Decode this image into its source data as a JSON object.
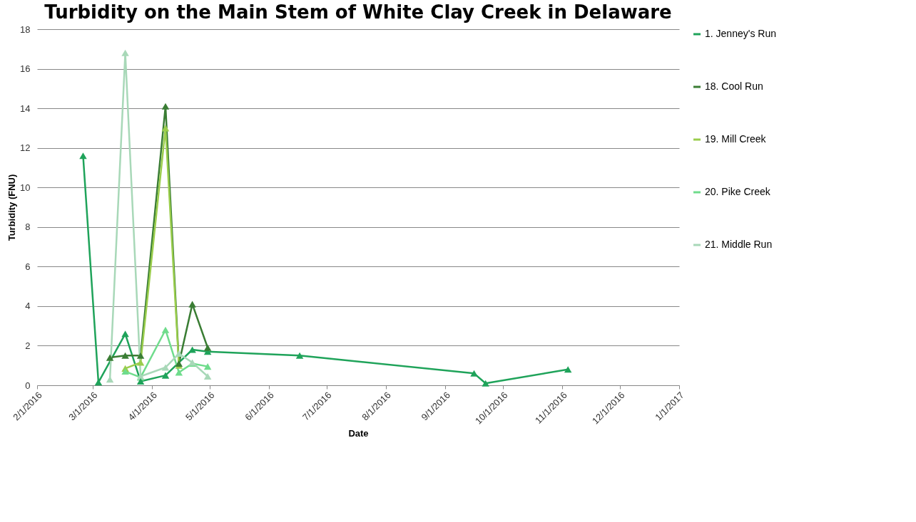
{
  "chart_data": {
    "type": "line",
    "title": "Turbidity on the Main Stem of White Clay Creek in Delaware",
    "xlabel": "Date",
    "ylabel": "Turbidity (FNU)",
    "xlim": [
      "2016-02-01",
      "2017-01-01"
    ],
    "xticks": [
      {
        "value": "2016-02-01",
        "label": "2/1/2016"
      },
      {
        "value": "2016-03-01",
        "label": "3/1/2016"
      },
      {
        "value": "2016-04-01",
        "label": "4/1/2016"
      },
      {
        "value": "2016-05-01",
        "label": "5/1/2016"
      },
      {
        "value": "2016-06-01",
        "label": "6/1/2016"
      },
      {
        "value": "2016-07-01",
        "label": "7/1/2016"
      },
      {
        "value": "2016-08-01",
        "label": "8/1/2016"
      },
      {
        "value": "2016-09-01",
        "label": "9/1/2016"
      },
      {
        "value": "2016-10-01",
        "label": "10/1/2016"
      },
      {
        "value": "2016-11-01",
        "label": "11/1/2016"
      },
      {
        "value": "2016-12-01",
        "label": "12/1/2016"
      },
      {
        "value": "2017-01-01",
        "label": "1/1/2017"
      }
    ],
    "ylim": [
      0,
      18
    ],
    "yticks": [
      0,
      2,
      4,
      6,
      8,
      10,
      12,
      14,
      16,
      18
    ],
    "grid": "y",
    "legend": "right",
    "marker": "triangle",
    "series": [
      {
        "name": "1. Jenney's Run",
        "color": "#1fa35a",
        "x": [
          "2016-02-25",
          "2016-03-04",
          "2016-03-18",
          "2016-03-26",
          "2016-04-08",
          "2016-04-22",
          "2016-04-30",
          "2016-06-17",
          "2016-09-16",
          "2016-09-22",
          "2016-11-04"
        ],
        "values": [
          11.6,
          0.15,
          2.6,
          0.2,
          0.5,
          1.8,
          1.7,
          1.5,
          0.6,
          0.1,
          0.8
        ]
      },
      {
        "name": "18. Cool Run",
        "color": "#3a7d34",
        "x": [
          "2016-03-10",
          "2016-03-18",
          "2016-03-26",
          "2016-04-08",
          "2016-04-15",
          "2016-04-22",
          "2016-04-30"
        ],
        "values": [
          1.4,
          1.5,
          1.5,
          14.1,
          1.1,
          4.1,
          1.9
        ]
      },
      {
        "name": "19. Mill Creek",
        "color": "#9acd4c",
        "x": [
          "2016-03-18",
          "2016-03-26",
          "2016-04-08",
          "2016-04-15"
        ],
        "values": [
          0.85,
          1.15,
          13.0,
          1.0
        ]
      },
      {
        "name": "20. Pike Creek",
        "color": "#6fdc8c",
        "x": [
          "2016-03-18",
          "2016-03-26",
          "2016-04-08",
          "2016-04-15",
          "2016-04-22",
          "2016-04-30"
        ],
        "values": [
          0.7,
          0.4,
          2.8,
          0.65,
          1.1,
          0.95
        ]
      },
      {
        "name": "21. Middle Run",
        "color": "#a8d8b8",
        "x": [
          "2016-03-10",
          "2016-03-18",
          "2016-03-26",
          "2016-04-08",
          "2016-04-15",
          "2016-04-22",
          "2016-04-30"
        ],
        "values": [
          0.3,
          16.8,
          0.45,
          0.9,
          1.6,
          1.15,
          0.45
        ]
      }
    ]
  }
}
